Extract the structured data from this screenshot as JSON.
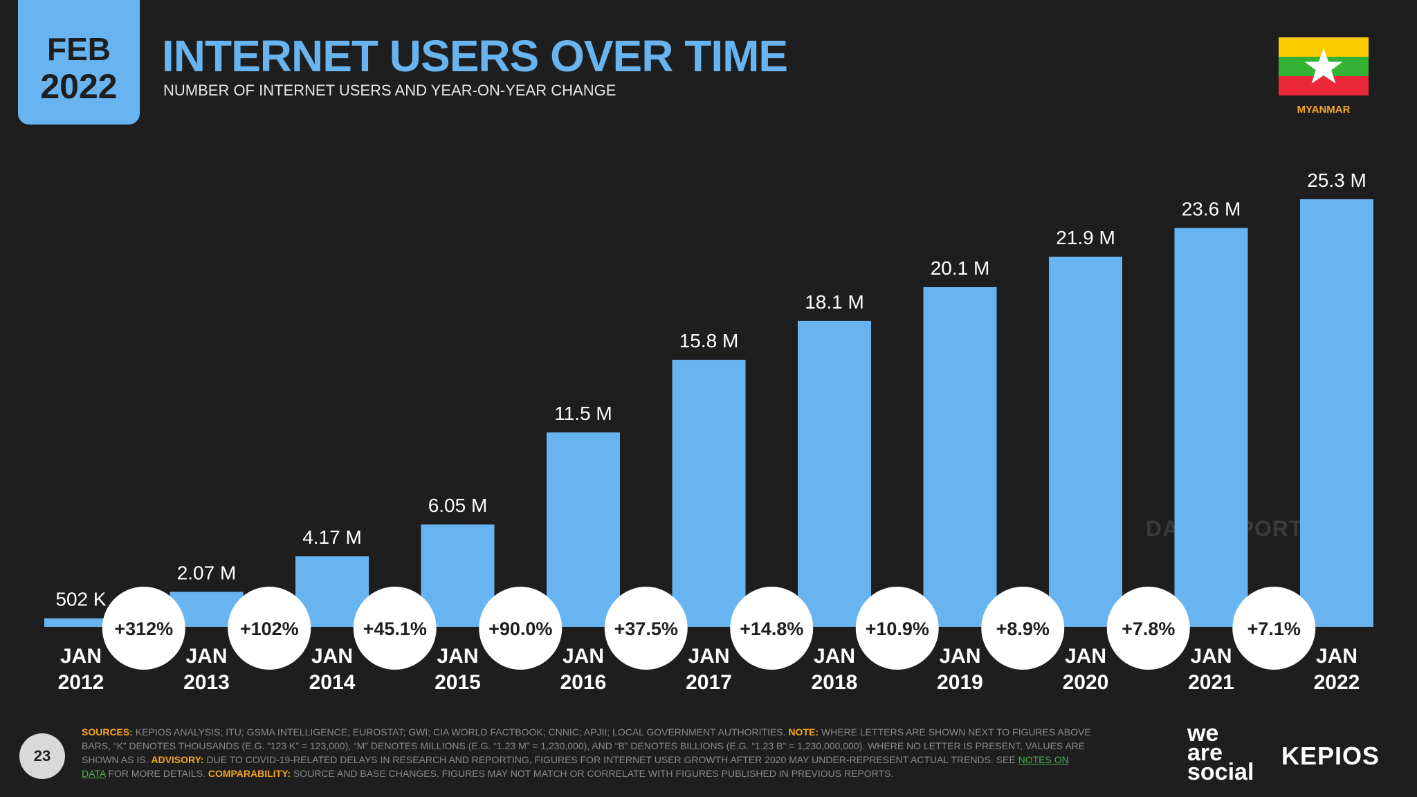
{
  "badge": {
    "month": "FEB",
    "year": "2022"
  },
  "header": {
    "title": "INTERNET USERS OVER TIME",
    "subtitle": "NUMBER OF INTERNET USERS AND YEAR-ON-YEAR CHANGE"
  },
  "country": {
    "name": "MYANMAR",
    "flag_colors": {
      "top": "#fecb00",
      "middle": "#34b233",
      "bottom": "#ea2839",
      "star": "#ffffff"
    }
  },
  "watermark": "DATAREPORTAL",
  "chart_data": {
    "type": "bar",
    "title": "INTERNET USERS OVER TIME",
    "categories": [
      "JAN 2012",
      "JAN 2013",
      "JAN 2014",
      "JAN 2015",
      "JAN 2016",
      "JAN 2017",
      "JAN 2018",
      "JAN 2019",
      "JAN 2020",
      "JAN 2021",
      "JAN 2022"
    ],
    "category_lines": [
      [
        "JAN",
        "2012"
      ],
      [
        "JAN",
        "2013"
      ],
      [
        "JAN",
        "2014"
      ],
      [
        "JAN",
        "2015"
      ],
      [
        "JAN",
        "2016"
      ],
      [
        "JAN",
        "2017"
      ],
      [
        "JAN",
        "2018"
      ],
      [
        "JAN",
        "2019"
      ],
      [
        "JAN",
        "2020"
      ],
      [
        "JAN",
        "2021"
      ],
      [
        "JAN",
        "2022"
      ]
    ],
    "values": [
      0.502,
      2.07,
      4.17,
      6.05,
      11.5,
      15.8,
      18.1,
      20.1,
      21.9,
      23.6,
      25.3
    ],
    "value_unit": "millions",
    "value_labels": [
      "502 K",
      "2.07 M",
      "4.17 M",
      "6.05 M",
      "11.5 M",
      "15.8 M",
      "18.1 M",
      "20.1 M",
      "21.9 M",
      "23.6 M",
      "25.3 M"
    ],
    "yoy_changes": [
      "+312%",
      "+102%",
      "+45.1%",
      "+90.0%",
      "+37.5%",
      "+14.8%",
      "+10.9%",
      "+8.9%",
      "+7.8%",
      "+7.1%"
    ],
    "ylim": [
      0,
      25.3
    ],
    "grid": false,
    "bar_color": "#67b4f1"
  },
  "footer": {
    "page_number": "23",
    "sources_label": "SOURCES:",
    "sources_text": "KEPIOS ANALYSIS; ITU; GSMA INTELLIGENCE; EUROSTAT; GWI; CIA WORLD FACTBOOK; CNNIC; APJII; LOCAL GOVERNMENT AUTHORITIES.",
    "note_label": "NOTE:",
    "note_text": "WHERE LETTERS ARE SHOWN NEXT TO FIGURES ABOVE BARS, “K” DENOTES THOUSANDS (E.G. “123 K” = 123,000), “M” DENOTES MILLIONS (E.G. “1.23 M” = 1,230,000), AND “B” DENOTES BILLIONS (E.G. “1.23 B” = 1,230,000,000). WHERE NO LETTER IS PRESENT, VALUES ARE SHOWN AS IS.",
    "advisory_label": "ADVISORY:",
    "advisory_text": "DUE TO COVID-19-RELATED DELAYS IN RESEARCH AND REPORTING, FIGURES FOR INTERNET USER GROWTH AFTER 2020 MAY UNDER-REPRESENT ACTUAL TRENDS. SEE",
    "notes_link": "NOTES ON DATA",
    "after_link_text": "FOR MORE DETAILS.",
    "comparability_label": "COMPARABILITY:",
    "comparability_text": "SOURCE AND BASE CHANGES. FIGURES MAY NOT MATCH OR CORRELATE WITH FIGURES PUBLISHED IN PREVIOUS REPORTS."
  },
  "brand": {
    "was_line1": "we",
    "was_line2": "are",
    "was_line3": "social",
    "kepios": "KEPIOS"
  }
}
